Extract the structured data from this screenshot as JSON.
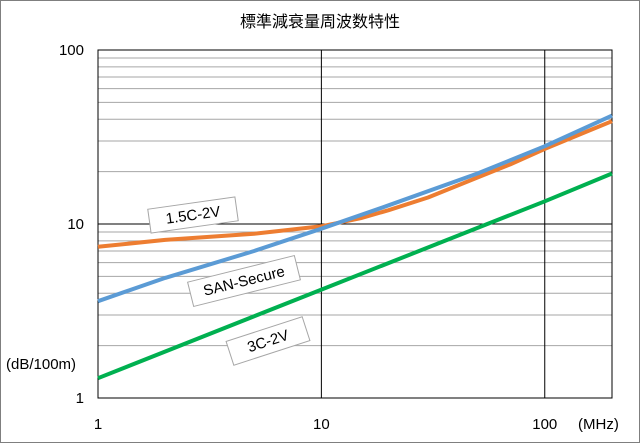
{
  "chart_data": {
    "type": "line",
    "title": "標準減衰量周波数特性",
    "x_scale": "log",
    "y_scale": "log",
    "xlim": [
      1,
      200
    ],
    "ylim": [
      1,
      100
    ],
    "x_tick_labels": [
      "1",
      "10",
      "100"
    ],
    "y_tick_labels": [
      "1",
      "10",
      "100"
    ],
    "x_unit_label": "(MHz)",
    "y_unit_label": "(dB/100m)",
    "grid": true,
    "legend": "none",
    "series": [
      {
        "name": "1.5C-2V",
        "color": "#ed7d31",
        "x": [
          1,
          2,
          5,
          10,
          15,
          20,
          30,
          50,
          70,
          100,
          150,
          200
        ],
        "y": [
          7.4,
          8.1,
          8.8,
          9.7,
          10.8,
          12.0,
          14.2,
          18.5,
          22.0,
          27.0,
          33.5,
          39.0
        ]
      },
      {
        "name": "SAN-Secure",
        "color": "#5b9bd5",
        "x": [
          1,
          2,
          5,
          10,
          20,
          50,
          100,
          200
        ],
        "y": [
          3.6,
          4.9,
          7.0,
          9.4,
          12.8,
          19.5,
          28.0,
          42.0
        ]
      },
      {
        "name": "3C-2V",
        "color": "#00b050",
        "x": [
          1,
          10,
          100,
          200
        ],
        "y": [
          1.3,
          4.2,
          13.5,
          19.5
        ]
      }
    ]
  }
}
